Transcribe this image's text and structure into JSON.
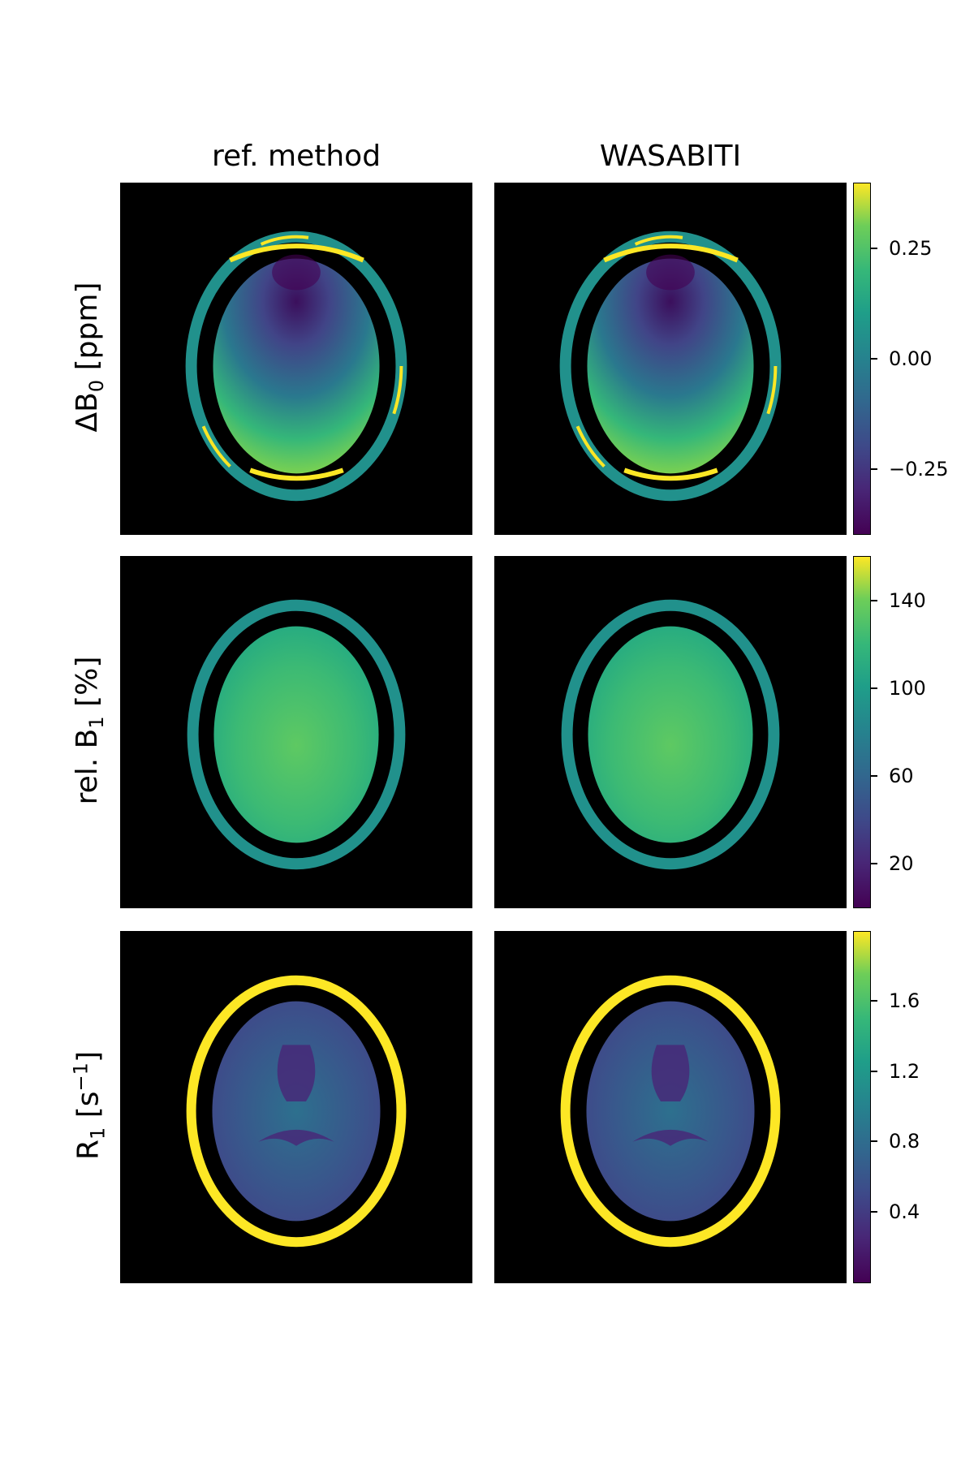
{
  "columns": [
    "ref. method",
    "WASABITI"
  ],
  "rows": [
    {
      "label_main": "ΔB",
      "label_sub": "0",
      "label_tail": " [ppm]",
      "ticks": [
        "0.25",
        "0.00",
        "−0.25"
      ]
    },
    {
      "label_main": "rel. B",
      "label_sub": "1",
      "label_tail": " [%]",
      "ticks": [
        "140",
        "100",
        "60",
        "20"
      ]
    },
    {
      "label_main": "R",
      "label_sub": "1",
      "label_tail": " [s",
      "label_sup": "−1",
      "label_end": "]",
      "ticks": [
        "1.6",
        "1.2",
        "0.8",
        "0.4"
      ]
    }
  ],
  "colormap": {
    "name": "viridis",
    "low": "#440154",
    "mid": "#21918c",
    "high": "#fde725"
  }
}
